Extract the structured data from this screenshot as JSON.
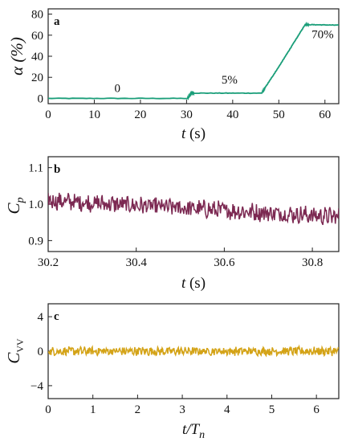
{
  "chart_data": [
    {
      "type": "line",
      "panel_label": "a",
      "ylabel": "α (%)",
      "xlabel_var": "t",
      "xlabel_unit": " (s)",
      "xlim": [
        0,
        63
      ],
      "ylim": [
        -5,
        85
      ],
      "xticks": [
        0,
        10,
        20,
        30,
        40,
        50,
        60
      ],
      "yticks": [
        0,
        20,
        40,
        60,
        80
      ],
      "color": "#1a9e79",
      "series": [
        {
          "x": [
            0,
            30.2,
            30.6,
            31.0,
            31.6,
            46.3,
            47,
            50,
            53,
            55.7,
            56.5,
            63
          ],
          "y": [
            0,
            0,
            2.5,
            5,
            5,
            5,
            10,
            30,
            51,
            70,
            70,
            69.5
          ]
        }
      ],
      "annotations": [
        {
          "text": "0",
          "x": 15,
          "y": 6
        },
        {
          "text": "5%",
          "x": 39.3,
          "y": 14
        },
        {
          "text": "70%",
          "x": 59.5,
          "y": 57
        }
      ]
    },
    {
      "type": "line",
      "panel_label": "b",
      "ylabel_main": "C",
      "ylabel_sub": "p",
      "xlabel_var": "t",
      "xlabel_unit": " (s)",
      "xlim": [
        30.2,
        30.86
      ],
      "ylim": [
        0.87,
        1.13
      ],
      "xticks": [
        "30.2",
        "30.4",
        "30.6",
        "30.8"
      ],
      "yticks": [
        "0.9",
        "1.0",
        "1.1"
      ],
      "color": "#7c2952",
      "trend": {
        "start": 1.01,
        "end": 0.965
      },
      "noise_amplitude": 0.022
    },
    {
      "type": "line",
      "panel_label": "c",
      "ylabel_main": "C",
      "ylabel_sub": "VV",
      "xlabel_var": "t/T",
      "xlabel_sub": "n",
      "xlim": [
        0,
        6.5
      ],
      "ylim": [
        -5.5,
        5.5
      ],
      "xticks": [
        0,
        1,
        2,
        3,
        4,
        5,
        6
      ],
      "yticks": [
        -4,
        0,
        4
      ],
      "color": "#d4a317",
      "trend": {
        "start": 0,
        "end": 0
      },
      "noise_amplitude": 0.45
    }
  ]
}
